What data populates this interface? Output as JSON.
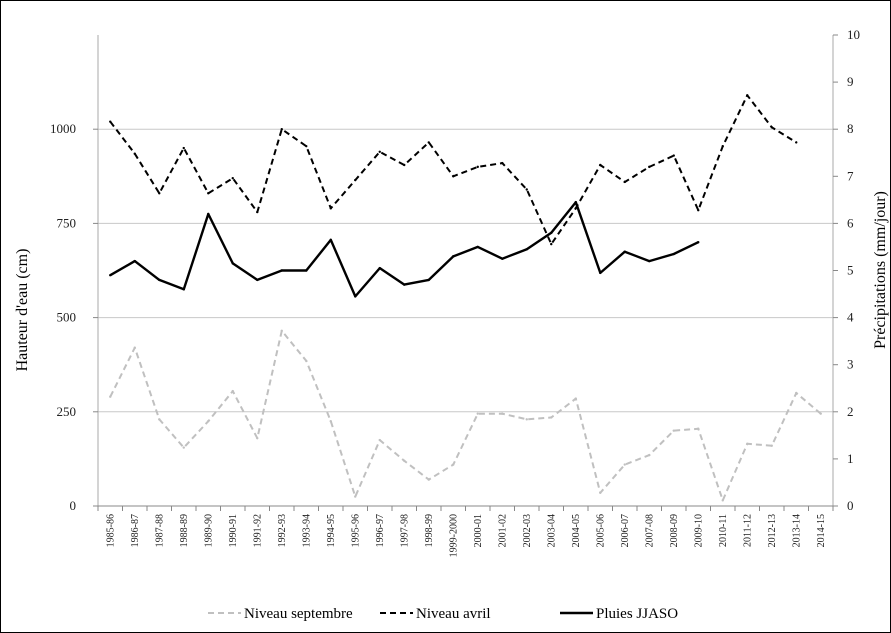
{
  "chart_data": {
    "type": "line",
    "categories": [
      "1985-86",
      "1986-87",
      "1987-88",
      "1988-89",
      "1989-90",
      "1990-91",
      "1991-92",
      "1992-93",
      "1993-94",
      "1994-95",
      "1995-96",
      "1996-97",
      "1997-98",
      "1998-99",
      "1999-2000",
      "2000-01",
      "2001-02",
      "2002-03",
      "2003-04",
      "2004-05",
      "2005-06",
      "2006-07",
      "2007-08",
      "2008-09",
      "2009-10",
      "2010-11",
      "2011-12",
      "2012-13",
      "2013-14",
      "2014-15"
    ],
    "ylabel_left": "Hauteur d'eau (cm)",
    "ylabel_right": "Précipitations  (mm/jour)",
    "ylim_left": [
      0,
      1250
    ],
    "yticks_left": [
      0,
      250,
      500,
      750,
      1000
    ],
    "ylim_right": [
      0,
      10
    ],
    "yticks_right": [
      0,
      1,
      2,
      3,
      4,
      5,
      6,
      7,
      8,
      9,
      10
    ],
    "grid": "horizontal",
    "legend_position": "bottom",
    "series": [
      {
        "name": "Niveau septembre",
        "axis": "left",
        "color": "#c0c0c0",
        "style": "dashed",
        "values": [
          290,
          420,
          230,
          155,
          225,
          305,
          180,
          465,
          385,
          225,
          25,
          175,
          120,
          70,
          110,
          245,
          245,
          230,
          235,
          285,
          35,
          110,
          135,
          200,
          205,
          15,
          165,
          160,
          300,
          245
        ]
      },
      {
        "name": "Niveau avril",
        "axis": "left",
        "color": "#000000",
        "style": "dashed",
        "values": [
          1020,
          935,
          830,
          950,
          830,
          870,
          780,
          1000,
          955,
          790,
          865,
          940,
          905,
          965,
          875,
          900,
          910,
          840,
          695,
          790,
          905,
          860,
          900,
          930,
          785,
          955,
          1090,
          1005,
          965,
          null
        ]
      },
      {
        "name": "Pluies JJASO",
        "axis": "right",
        "color": "#000000",
        "style": "solid",
        "values": [
          4.9,
          5.2,
          4.8,
          4.6,
          6.2,
          5.15,
          4.8,
          5.0,
          5.0,
          5.65,
          4.45,
          5.05,
          4.7,
          4.8,
          5.3,
          5.5,
          5.25,
          5.45,
          5.8,
          6.45,
          4.95,
          5.4,
          5.2,
          5.35,
          5.6,
          null,
          null,
          null,
          null,
          null
        ]
      }
    ]
  }
}
